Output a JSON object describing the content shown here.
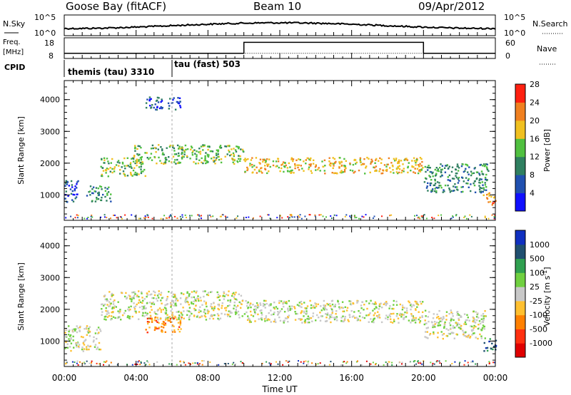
{
  "header": {
    "station": "Goose Bay (fitACF)",
    "beam": "Beam 10",
    "date": "09/Apr/2012"
  },
  "noise_panel": {
    "left_label": "N.Sky",
    "right_label": "N.Search",
    "left_ticks": [
      "10^5",
      "10^0"
    ],
    "right_ticks": [
      "10^5",
      "10^0"
    ]
  },
  "freq_panel": {
    "left_label_1": "Freq.",
    "left_label_2": "[MHz]",
    "right_label": "Nave",
    "left_ticks": [
      "18",
      "8"
    ],
    "right_ticks": [
      "60",
      "0"
    ]
  },
  "cpid_panel": {
    "label": "CPID",
    "modes": [
      {
        "name": "themis (tau) 3310",
        "start_hour": 0
      },
      {
        "name": "tau (fast) 503",
        "start_hour": 6
      }
    ]
  },
  "chart_data": [
    {
      "type": "line",
      "title": "N.Sky / N.Search",
      "x_range_hours": [
        0,
        24
      ],
      "series": [
        {
          "name": "N.Sky",
          "scale": "log",
          "ylim": [
            1,
            100000
          ]
        },
        {
          "name": "N.Search",
          "scale": "log",
          "ylim": [
            1,
            100000
          ]
        }
      ]
    },
    {
      "type": "line",
      "title": "Freq. / Nave",
      "x_range_hours": [
        0,
        24
      ],
      "series": [
        {
          "name": "Freq. [MHz]",
          "ylim": [
            8,
            18
          ],
          "steps": [
            {
              "x0": 0,
              "x1": 10,
              "y": 10.5
            },
            {
              "x0": 10,
              "x1": 20,
              "y": 15.8
            },
            {
              "x0": 20,
              "x1": 24,
              "y": 10.5
            }
          ]
        },
        {
          "name": "Nave",
          "ylim": [
            0,
            60
          ],
          "value": 15
        }
      ]
    },
    {
      "type": "heatmap",
      "xlabel": "",
      "ylabel": "Slant Range [km]",
      "ylim": [
        200,
        4600
      ],
      "yticks": [
        "1000",
        "2000",
        "3000",
        "4000"
      ],
      "colorbar": {
        "label": "Power [dB]",
        "ticks": [
          "4",
          "8",
          "12",
          "16",
          "20",
          "24",
          "28"
        ],
        "colors": [
          "#1010ff",
          "#2050b0",
          "#2f7f60",
          "#50c040",
          "#f0c020",
          "#f08020",
          "#ff2010"
        ]
      },
      "bands": [
        {
          "x": [
            0.0,
            0.8
          ],
          "y": [
            800,
            1500
          ],
          "level": 1
        },
        {
          "x": [
            1.2,
            2.6
          ],
          "y": [
            800,
            1300
          ],
          "level": 2
        },
        {
          "x": [
            2.0,
            4.5
          ],
          "y": [
            1600,
            2200
          ],
          "level": 3
        },
        {
          "x": [
            3.8,
            10.0
          ],
          "y": [
            2000,
            2600
          ],
          "level": 3
        },
        {
          "x": [
            4.5,
            6.5
          ],
          "y": [
            3700,
            4100
          ],
          "level": 1
        },
        {
          "x": [
            10.0,
            20.0
          ],
          "y": [
            1700,
            2200
          ],
          "level": 4
        },
        {
          "x": [
            20.0,
            23.6
          ],
          "y": [
            1100,
            2000
          ],
          "level": 2
        },
        {
          "x": [
            23.3,
            24.0
          ],
          "y": [
            700,
            1100
          ],
          "level": 5
        }
      ]
    },
    {
      "type": "heatmap",
      "xlabel": "Time UT",
      "ylabel": "Slant Range [km]",
      "ylim": [
        200,
        4600
      ],
      "yticks": [
        "1000",
        "2000",
        "3000",
        "4000"
      ],
      "xticks": [
        "00:00",
        "04:00",
        "08:00",
        "12:00",
        "16:00",
        "20:00",
        "00:00"
      ],
      "colorbar": {
        "label": "Velocity [m s^-1]",
        "ticks": [
          "1000",
          "500",
          "100",
          "25",
          "-25",
          "-100",
          "-500",
          "-1000"
        ],
        "colors": [
          "#1030c0",
          "#205070",
          "#30a050",
          "#70d040",
          "#c8c8c8",
          "#ffc030",
          "#ff8000",
          "#ff3010",
          "#e00000"
        ]
      },
      "bands": [
        {
          "x": [
            0.0,
            2.0
          ],
          "y": [
            700,
            1500
          ],
          "level": 4
        },
        {
          "x": [
            2.0,
            10.0
          ],
          "y": [
            1700,
            2600
          ],
          "level": 4
        },
        {
          "x": [
            4.5,
            6.5
          ],
          "y": [
            1300,
            1800
          ],
          "level": 6
        },
        {
          "x": [
            10.0,
            20.0
          ],
          "y": [
            1600,
            2300
          ],
          "level": 4
        },
        {
          "x": [
            20.0,
            23.5
          ],
          "y": [
            1100,
            2000
          ],
          "level": 4
        },
        {
          "x": [
            23.3,
            24.0
          ],
          "y": [
            700,
            1100
          ],
          "level": 1
        }
      ]
    }
  ]
}
